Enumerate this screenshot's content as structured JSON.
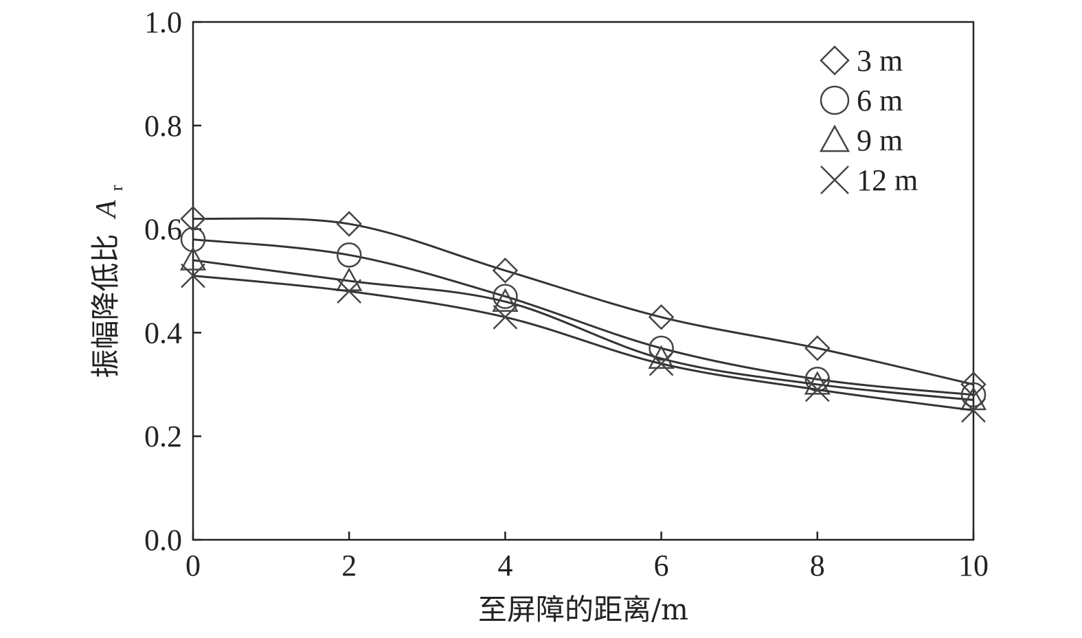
{
  "chart_data": {
    "type": "line",
    "xlabel": "至屏障的距离/m",
    "ylabel": "振幅降低比",
    "ylabel_symbol": "A",
    "ylabel_subscript": "r",
    "xlim": [
      0,
      10
    ],
    "ylim": [
      0.0,
      1.0
    ],
    "xticks": [
      0,
      2,
      4,
      6,
      8,
      10
    ],
    "yticks": [
      0.0,
      0.2,
      0.4,
      0.6,
      0.8,
      1.0
    ],
    "ytick_labels": [
      "0.0",
      "0.2",
      "0.4",
      "0.6",
      "0.8",
      "1.0"
    ],
    "grid": false,
    "legend_position": "top-right",
    "x": [
      0,
      2,
      4,
      6,
      8,
      10
    ],
    "series": [
      {
        "name": "3 m",
        "marker": "diamond",
        "values": [
          0.62,
          0.61,
          0.52,
          0.43,
          0.37,
          0.3
        ]
      },
      {
        "name": "6 m",
        "marker": "circle",
        "values": [
          0.58,
          0.55,
          0.47,
          0.37,
          0.31,
          0.28
        ]
      },
      {
        "name": "9 m",
        "marker": "triangle",
        "values": [
          0.54,
          0.5,
          0.46,
          0.35,
          0.3,
          0.27
        ]
      },
      {
        "name": "12 m",
        "marker": "x",
        "values": [
          0.51,
          0.48,
          0.43,
          0.34,
          0.29,
          0.25
        ]
      }
    ]
  }
}
